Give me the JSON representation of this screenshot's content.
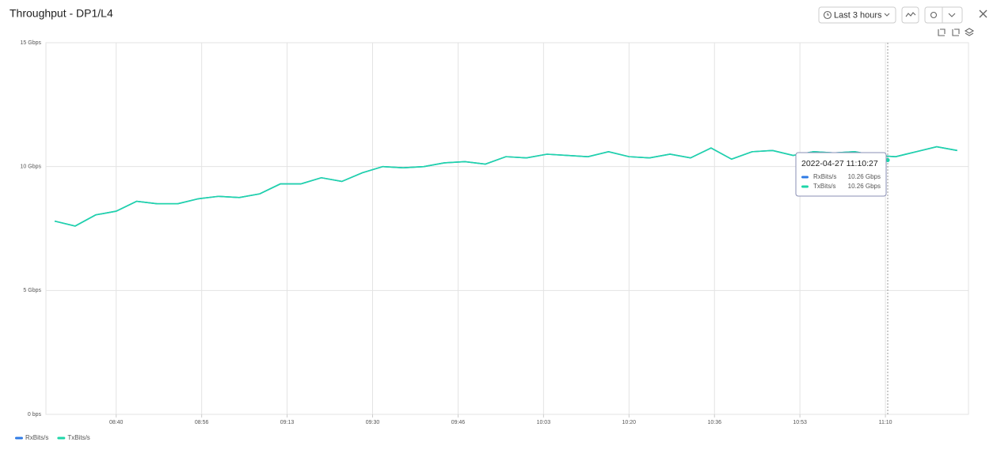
{
  "header": {
    "title": "Throughput - DP1/L4",
    "time_range": "Last 3 hours"
  },
  "chart_data": {
    "type": "line",
    "x": [
      508,
      512,
      516,
      520,
      524,
      528,
      532,
      536,
      540,
      544,
      548,
      552,
      556,
      560,
      564,
      568,
      572,
      576,
      580,
      584,
      588,
      592,
      596,
      600,
      604,
      608,
      612,
      616,
      620,
      624,
      628,
      632,
      636,
      640,
      644,
      648,
      652,
      656,
      660,
      664,
      668,
      672,
      676,
      680,
      684
    ],
    "series": [
      {
        "name": "RxBits/s",
        "color": "#2f7be5",
        "values": [
          7.8,
          7.6,
          8.05,
          8.2,
          8.6,
          8.5,
          8.5,
          8.7,
          8.8,
          8.75,
          8.9,
          9.3,
          9.3,
          9.55,
          9.4,
          9.75,
          10.0,
          9.95,
          10.0,
          10.15,
          10.2,
          10.1,
          10.4,
          10.35,
          10.5,
          10.45,
          10.4,
          10.6,
          10.4,
          10.35,
          10.5,
          10.35,
          10.75,
          10.3,
          10.6,
          10.65,
          10.45,
          10.6,
          10.55,
          10.6,
          10.45,
          10.4,
          10.6,
          10.8,
          10.65
        ]
      },
      {
        "name": "TxBits/s",
        "color": "#1ed6a8",
        "values": [
          7.8,
          7.6,
          8.05,
          8.2,
          8.6,
          8.5,
          8.5,
          8.7,
          8.8,
          8.75,
          8.9,
          9.3,
          9.3,
          9.55,
          9.4,
          9.75,
          10.0,
          9.95,
          10.0,
          10.15,
          10.2,
          10.1,
          10.4,
          10.35,
          10.5,
          10.45,
          10.4,
          10.6,
          10.4,
          10.35,
          10.5,
          10.35,
          10.75,
          10.3,
          10.6,
          10.65,
          10.45,
          10.6,
          10.55,
          10.6,
          10.45,
          10.4,
          10.6,
          10.8,
          10.65
        ]
      }
    ],
    "xlim": [
      506.3,
      686.2
    ],
    "xticks": [
      {
        "value": 520,
        "label": "08:40"
      },
      {
        "value": 536.67,
        "label": "08:56"
      },
      {
        "value": 553.33,
        "label": "09:13"
      },
      {
        "value": 570,
        "label": "09:30"
      },
      {
        "value": 586.67,
        "label": "09:46"
      },
      {
        "value": 603.33,
        "label": "10:03"
      },
      {
        "value": 620,
        "label": "10:20"
      },
      {
        "value": 636.67,
        "label": "10:36"
      },
      {
        "value": 653.33,
        "label": "10:53"
      },
      {
        "value": 670,
        "label": "11:10"
      }
    ],
    "ylim": [
      0,
      15
    ],
    "yticks": [
      {
        "value": 0,
        "label": "0 bps"
      },
      {
        "value": 5,
        "label": "5 Gbps"
      },
      {
        "value": 10,
        "label": "10 Gbps"
      },
      {
        "value": 15,
        "label": "15 Gbps"
      }
    ],
    "grid": true,
    "legend": "bottom-left",
    "tooltip": {
      "x": "2022-04-27 11:10:27",
      "values": [
        10.26,
        10.26
      ],
      "value_labels": [
        "10.26 Gbps",
        "10.26 Gbps"
      ]
    }
  }
}
